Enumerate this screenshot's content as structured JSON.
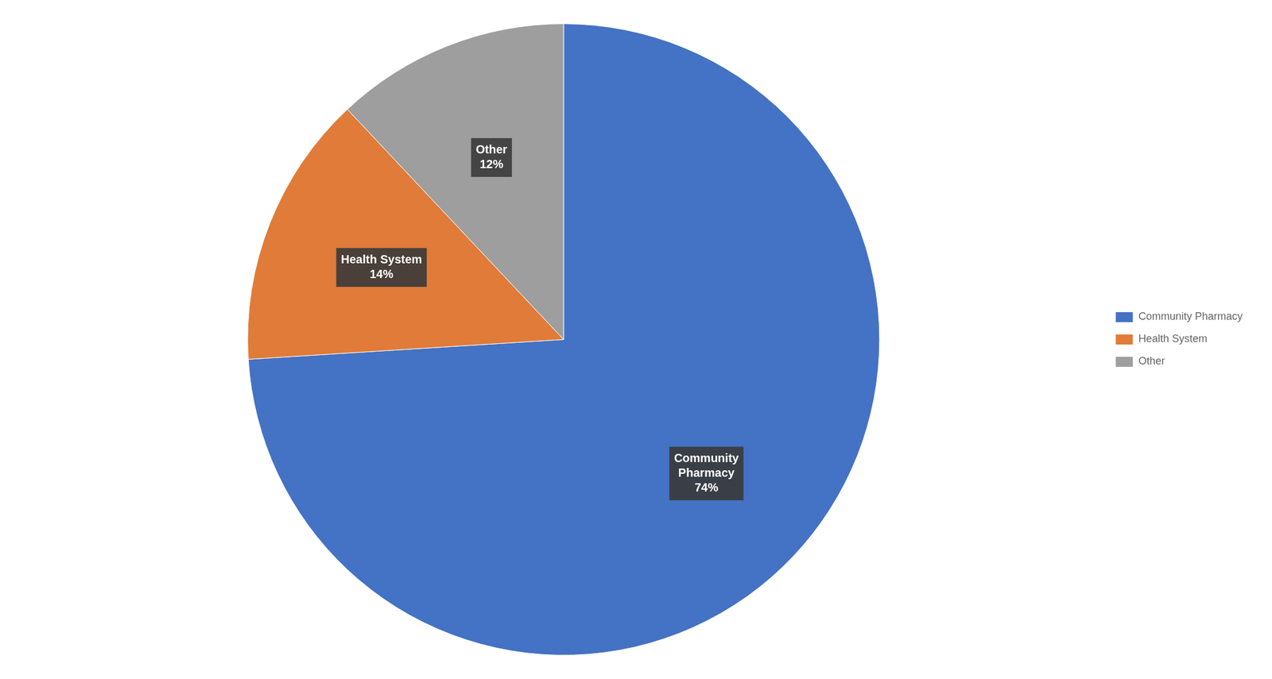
{
  "chart_data": {
    "type": "pie",
    "categories": [
      "Community Pharmacy",
      "Health System",
      "Other"
    ],
    "values": [
      74,
      14,
      12
    ],
    "colors": [
      "#4472C4",
      "#E07B39",
      "#9E9E9E"
    ],
    "data_labels": true,
    "value_labels": [
      "Community\nPharmacy\n74%",
      "Health System\n14%",
      "Other\n12%"
    ],
    "legend": "right"
  }
}
